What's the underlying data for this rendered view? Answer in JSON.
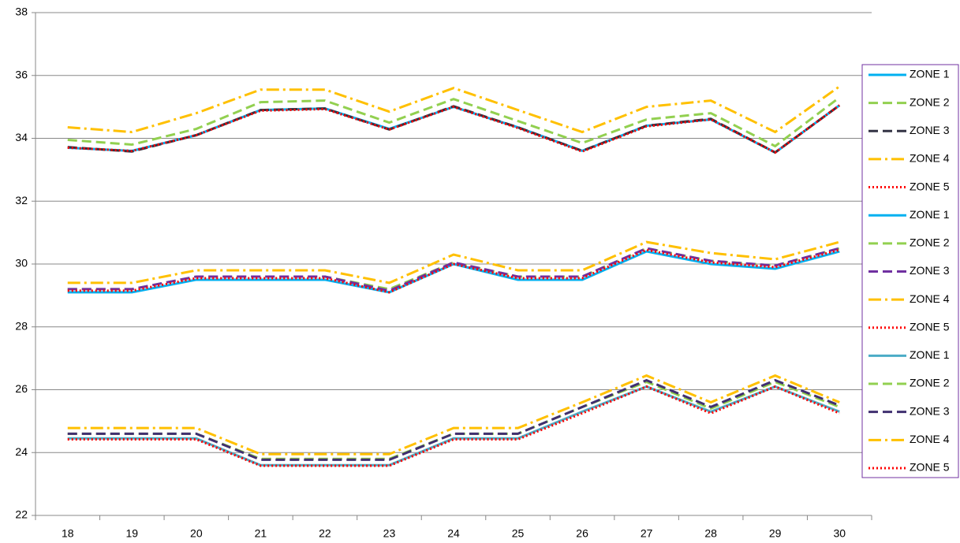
{
  "chart_data": {
    "type": "line",
    "categories": [
      "18",
      "19",
      "20",
      "21",
      "22",
      "23",
      "24",
      "25",
      "26",
      "27",
      "28",
      "29",
      "30"
    ],
    "ylim": [
      22,
      38
    ],
    "yticks": [
      22,
      24,
      26,
      28,
      30,
      32,
      34,
      36,
      38
    ],
    "grid": true,
    "legend": "right",
    "series": [
      {
        "name": "ZONE 1",
        "color": "#00b0f0",
        "style": "solid",
        "values": [
          33.7,
          33.6,
          34.1,
          34.9,
          34.95,
          34.3,
          35.0,
          34.35,
          33.6,
          34.4,
          34.6,
          33.55,
          35.05
        ]
      },
      {
        "name": "ZONE 2",
        "color": "#92d050",
        "style": "dash",
        "values": [
          33.95,
          33.8,
          34.3,
          35.15,
          35.2,
          34.5,
          35.25,
          34.55,
          33.85,
          34.6,
          34.8,
          33.75,
          35.3
        ]
      },
      {
        "name": "ZONE 3",
        "color": "#333344",
        "style": "dash",
        "values": [
          33.72,
          33.58,
          34.1,
          34.9,
          34.95,
          34.28,
          35.02,
          34.35,
          33.6,
          34.4,
          34.62,
          33.55,
          35.05
        ]
      },
      {
        "name": "ZONE 4",
        "color": "#ffc000",
        "style": "dashdot",
        "values": [
          34.35,
          34.2,
          34.8,
          35.55,
          35.55,
          34.85,
          35.6,
          34.9,
          34.2,
          35.0,
          35.2,
          34.2,
          35.65
        ]
      },
      {
        "name": "ZONE 5",
        "color": "#ff0000",
        "style": "dot",
        "values": [
          33.7,
          33.6,
          34.1,
          34.88,
          34.93,
          34.28,
          35.0,
          34.33,
          33.58,
          34.38,
          34.6,
          33.55,
          35.05
        ]
      },
      {
        "name": "ZONE 1",
        "color": "#00b0f0",
        "style": "solid",
        "values": [
          29.1,
          29.1,
          29.5,
          29.5,
          29.5,
          29.1,
          30.0,
          29.5,
          29.5,
          30.4,
          30.0,
          29.85,
          30.4
        ]
      },
      {
        "name": "ZONE 2",
        "color": "#92d050",
        "style": "dash",
        "values": [
          29.2,
          29.2,
          29.6,
          29.6,
          29.6,
          29.2,
          30.05,
          29.6,
          29.6,
          30.5,
          30.1,
          29.95,
          30.5
        ]
      },
      {
        "name": "ZONE 3",
        "color": "#7030a0",
        "style": "dash",
        "values": [
          29.2,
          29.2,
          29.6,
          29.6,
          29.6,
          29.15,
          30.05,
          29.6,
          29.6,
          30.5,
          30.1,
          29.95,
          30.5
        ]
      },
      {
        "name": "ZONE 4",
        "color": "#ffc000",
        "style": "dashdot",
        "values": [
          29.4,
          29.4,
          29.8,
          29.8,
          29.8,
          29.4,
          30.3,
          29.8,
          29.8,
          30.7,
          30.35,
          30.15,
          30.7
        ]
      },
      {
        "name": "ZONE 5",
        "color": "#ff0000",
        "style": "dot",
        "values": [
          29.15,
          29.15,
          29.55,
          29.55,
          29.55,
          29.1,
          30.0,
          29.55,
          29.55,
          30.45,
          30.05,
          29.9,
          30.45
        ]
      },
      {
        "name": "ZONE 1",
        "color": "#4bacc6",
        "style": "solid",
        "values": [
          24.45,
          24.45,
          24.45,
          23.6,
          23.6,
          23.6,
          24.45,
          24.45,
          25.3,
          26.1,
          25.3,
          26.1,
          25.3
        ]
      },
      {
        "name": "ZONE 2",
        "color": "#92d050",
        "style": "dash",
        "values": [
          24.6,
          24.6,
          24.6,
          23.8,
          23.8,
          23.8,
          24.6,
          24.6,
          25.45,
          26.25,
          25.4,
          26.25,
          25.45
        ]
      },
      {
        "name": "ZONE 3",
        "color": "#403070",
        "style": "dash",
        "values": [
          24.6,
          24.6,
          24.6,
          23.77,
          23.77,
          23.77,
          24.6,
          24.6,
          25.45,
          26.3,
          25.45,
          26.3,
          25.5
        ]
      },
      {
        "name": "ZONE 4",
        "color": "#ffc000",
        "style": "dashdot",
        "values": [
          24.78,
          24.78,
          24.78,
          23.95,
          23.95,
          23.95,
          24.78,
          24.78,
          25.6,
          26.45,
          25.6,
          26.45,
          25.6
        ]
      },
      {
        "name": "ZONE 5",
        "color": "#ff0000",
        "style": "dot",
        "values": [
          24.42,
          24.42,
          24.42,
          23.58,
          23.58,
          23.58,
          24.42,
          24.42,
          25.25,
          26.1,
          25.25,
          26.1,
          25.25
        ]
      }
    ]
  }
}
